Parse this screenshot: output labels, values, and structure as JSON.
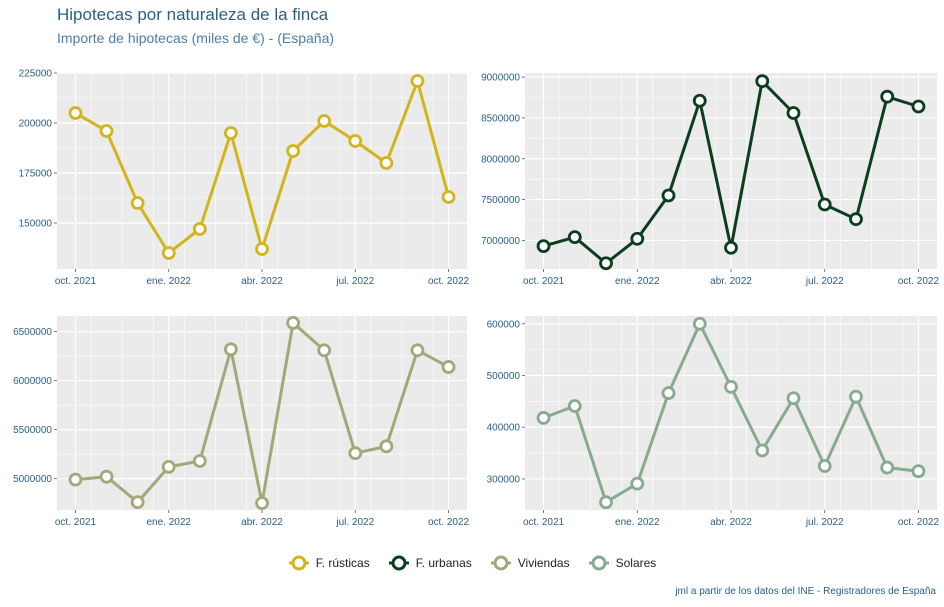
{
  "title": "Hipotecas por naturaleza de la finca",
  "subtitle": "Importe de hipotecas (miles de €) - (España)",
  "caption": "jml a partir de los datos del INE - Registradores de España",
  "colors": {
    "panel_bg": "#ebebeb",
    "grid": "#ffffff",
    "text": "#2b5f8a"
  },
  "chart_data": [
    {
      "type": "line",
      "name": "F. rústicas",
      "color": "#d4b41c",
      "x": [
        "2021-10",
        "2021-11",
        "2021-12",
        "2022-01",
        "2022-02",
        "2022-03",
        "2022-04",
        "2022-05",
        "2022-06",
        "2022-07",
        "2022-08",
        "2022-09",
        "2022-10"
      ],
      "values": [
        205000,
        196000,
        160000,
        135000,
        147000,
        195000,
        137000,
        186000,
        201000,
        191000,
        180000,
        221000,
        163000
      ],
      "ylim": [
        127000,
        225000
      ],
      "yticks": [
        150000,
        175000,
        200000,
        225000
      ],
      "xticks": [
        {
          "i": 0,
          "label": "oct. 2021"
        },
        {
          "i": 3,
          "label": "ene. 2022"
        },
        {
          "i": 6,
          "label": "abr. 2022"
        },
        {
          "i": 9,
          "label": "jul. 2022"
        },
        {
          "i": 12,
          "label": "oct. 2022"
        }
      ]
    },
    {
      "type": "line",
      "name": "F. urbanas",
      "color": "#0d3d1f",
      "x": [
        "2021-10",
        "2021-11",
        "2021-12",
        "2022-01",
        "2022-02",
        "2022-03",
        "2022-04",
        "2022-05",
        "2022-06",
        "2022-07",
        "2022-08",
        "2022-09",
        "2022-10"
      ],
      "values": [
        6930000,
        7040000,
        6720000,
        7020000,
        7550000,
        8710000,
        6910000,
        8950000,
        8560000,
        7440000,
        7260000,
        8760000,
        8640000
      ],
      "ylim": [
        6650000,
        9050000
      ],
      "yticks": [
        7000000,
        7500000,
        8000000,
        8500000,
        9000000
      ],
      "xticks": [
        {
          "i": 0,
          "label": "oct. 2021"
        },
        {
          "i": 3,
          "label": "ene. 2022"
        },
        {
          "i": 6,
          "label": "abr. 2022"
        },
        {
          "i": 9,
          "label": "jul. 2022"
        },
        {
          "i": 12,
          "label": "oct. 2022"
        }
      ]
    },
    {
      "type": "line",
      "name": "Viviendas",
      "color": "#a4a77a",
      "x": [
        "2021-10",
        "2021-11",
        "2021-12",
        "2022-01",
        "2022-02",
        "2022-03",
        "2022-04",
        "2022-05",
        "2022-06",
        "2022-07",
        "2022-08",
        "2022-09",
        "2022-10"
      ],
      "values": [
        4990000,
        5020000,
        4760000,
        5120000,
        5180000,
        6320000,
        4750000,
        6590000,
        6310000,
        5260000,
        5330000,
        6310000,
        6140000
      ],
      "ylim": [
        4680000,
        6660000
      ],
      "yticks": [
        5000000,
        5500000,
        6000000,
        6500000
      ],
      "xticks": [
        {
          "i": 0,
          "label": "oct. 2021"
        },
        {
          "i": 3,
          "label": "ene. 2022"
        },
        {
          "i": 6,
          "label": "abr. 2022"
        },
        {
          "i": 9,
          "label": "jul. 2022"
        },
        {
          "i": 12,
          "label": "oct. 2022"
        }
      ]
    },
    {
      "type": "line",
      "name": "Solares",
      "color": "#88aa8e",
      "x": [
        "2021-10",
        "2021-11",
        "2021-12",
        "2022-01",
        "2022-02",
        "2022-03",
        "2022-04",
        "2022-05",
        "2022-06",
        "2022-07",
        "2022-08",
        "2022-09",
        "2022-10"
      ],
      "values": [
        418000,
        441000,
        255000,
        291000,
        466000,
        600000,
        478000,
        355000,
        456000,
        325000,
        459000,
        322000,
        315000
      ],
      "ylim": [
        240000,
        615000
      ],
      "yticks": [
        300000,
        400000,
        500000,
        600000
      ],
      "xticks": [
        {
          "i": 0,
          "label": "oct. 2021"
        },
        {
          "i": 3,
          "label": "ene. 2022"
        },
        {
          "i": 6,
          "label": "abr. 2022"
        },
        {
          "i": 9,
          "label": "jul. 2022"
        },
        {
          "i": 12,
          "label": "oct. 2022"
        }
      ]
    }
  ],
  "legend": [
    {
      "label": "F. rústicas",
      "color": "#d4b41c"
    },
    {
      "label": "F. urbanas",
      "color": "#0d3d1f"
    },
    {
      "label": "Viviendas",
      "color": "#a4a77a"
    },
    {
      "label": "Solares",
      "color": "#88aa8e"
    }
  ]
}
